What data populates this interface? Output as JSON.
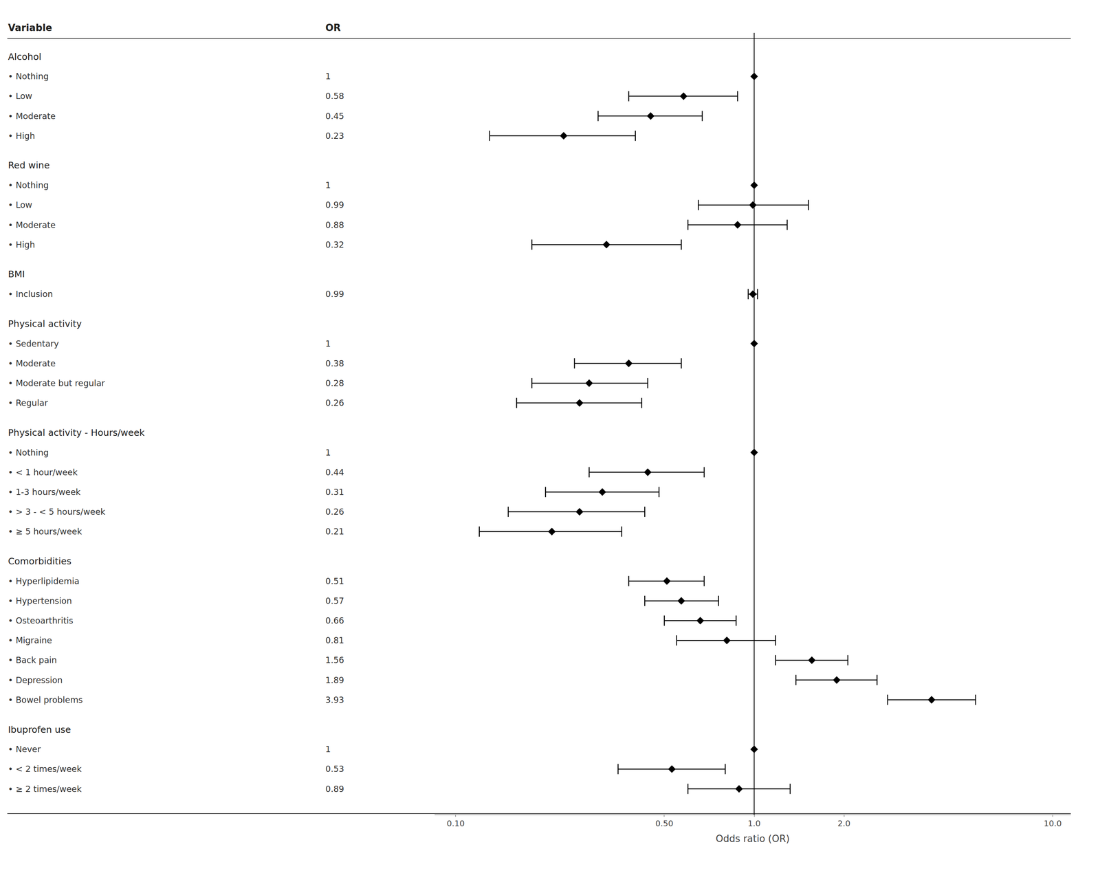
{
  "chart_data": {
    "type": "forest",
    "columns": [
      "Variable",
      "OR"
    ],
    "xlabel": "Odds ratio (OR)",
    "log": "x",
    "xlim": [
      0.085,
      11.5
    ],
    "xticks": [
      {
        "value": 0.1,
        "label": "0.10"
      },
      {
        "value": 0.5,
        "label": "0.50"
      },
      {
        "value": 1.0,
        "label": "1.0"
      },
      {
        "value": 2.0,
        "label": "2.0"
      },
      {
        "value": 10.0,
        "label": "10.0"
      }
    ],
    "reference_line": 1.0,
    "grid": false,
    "tick_labels": "x",
    "data_labels": true,
    "color": "black",
    "marker": "diamond",
    "groups": [
      {
        "name": "Alcohol",
        "items": [
          {
            "label": "• Nothing",
            "value": 1.0,
            "ci_lo": null,
            "ci_hi": null
          },
          {
            "label": "• Low",
            "value": 0.58,
            "ci_lo": 0.38,
            "ci_hi": 0.88
          },
          {
            "label": "• Moderate",
            "value": 0.45,
            "ci_lo": 0.3,
            "ci_hi": 0.67
          },
          {
            "label": "• High",
            "value": 0.23,
            "ci_lo": 0.13,
            "ci_hi": 0.4
          }
        ]
      },
      {
        "name": "Red wine",
        "items": [
          {
            "label": "• Nothing",
            "value": 1.0,
            "ci_lo": null,
            "ci_hi": null
          },
          {
            "label": "• Low",
            "value": 0.99,
            "ci_lo": 0.65,
            "ci_hi": 1.52
          },
          {
            "label": "• Moderate",
            "value": 0.88,
            "ci_lo": 0.6,
            "ci_hi": 1.29
          },
          {
            "label": "• High",
            "value": 0.32,
            "ci_lo": 0.18,
            "ci_hi": 0.57
          }
        ]
      },
      {
        "name": "BMI",
        "items": [
          {
            "label": "• Inclusion",
            "value": 0.99,
            "ci_lo": 0.955,
            "ci_hi": 1.026
          }
        ]
      },
      {
        "name": "Physical activity",
        "items": [
          {
            "label": "• Sedentary",
            "value": 1.0,
            "ci_lo": null,
            "ci_hi": null
          },
          {
            "label": "• Moderate",
            "value": 0.38,
            "ci_lo": 0.25,
            "ci_hi": 0.57
          },
          {
            "label": "• Moderate but regular",
            "value": 0.28,
            "ci_lo": 0.18,
            "ci_hi": 0.44
          },
          {
            "label": "• Regular",
            "value": 0.26,
            "ci_lo": 0.16,
            "ci_hi": 0.42
          }
        ]
      },
      {
        "name": "Physical activity - Hours/week",
        "items": [
          {
            "label": "• Nothing",
            "value": 1.0,
            "ci_lo": null,
            "ci_hi": null
          },
          {
            "label": "• < 1 hour/week",
            "value": 0.44,
            "ci_lo": 0.28,
            "ci_hi": 0.68
          },
          {
            "label": "• 1-3 hours/week",
            "value": 0.31,
            "ci_lo": 0.2,
            "ci_hi": 0.48
          },
          {
            "label": "• > 3 - < 5 hours/week",
            "value": 0.26,
            "ci_lo": 0.15,
            "ci_hi": 0.43
          },
          {
            "label": "• ≥ 5 hours/week",
            "value": 0.21,
            "ci_lo": 0.12,
            "ci_hi": 0.36
          }
        ]
      },
      {
        "name": "Comorbidities",
        "items": [
          {
            "label": "• Hyperlipidemia",
            "value": 0.51,
            "ci_lo": 0.38,
            "ci_hi": 0.68
          },
          {
            "label": "• Hypertension",
            "value": 0.57,
            "ci_lo": 0.43,
            "ci_hi": 0.76
          },
          {
            "label": "• Osteoarthritis",
            "value": 0.66,
            "ci_lo": 0.5,
            "ci_hi": 0.87
          },
          {
            "label": "• Migraine",
            "value": 0.81,
            "ci_lo": 0.55,
            "ci_hi": 1.18
          },
          {
            "label": "• Back pain",
            "value": 1.56,
            "ci_lo": 1.18,
            "ci_hi": 2.06
          },
          {
            "label": "• Depression",
            "value": 1.89,
            "ci_lo": 1.38,
            "ci_hi": 2.58
          },
          {
            "label": "• Bowel problems",
            "value": 3.93,
            "ci_lo": 2.8,
            "ci_hi": 5.52
          }
        ]
      },
      {
        "name": "Ibuprofen use",
        "items": [
          {
            "label": "• Never",
            "value": 1.0,
            "ci_lo": null,
            "ci_hi": null
          },
          {
            "label": "• < 2 times/week",
            "value": 0.53,
            "ci_lo": 0.35,
            "ci_hi": 0.8
          },
          {
            "label": "• ≥ 2 times/week",
            "value": 0.89,
            "ci_lo": 0.6,
            "ci_hi": 1.32
          }
        ]
      }
    ]
  }
}
